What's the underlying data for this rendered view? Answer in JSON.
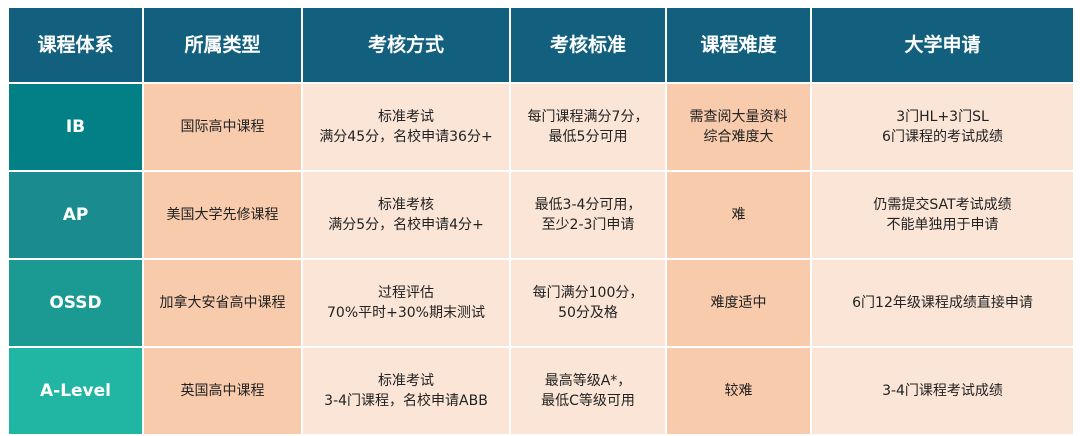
{
  "headers": [
    "课程体系",
    "所属类型",
    "考核方式",
    "考核标准",
    "课程难度",
    "大学申请"
  ],
  "colors": {
    "header": "#135f7e",
    "cell_light": "#fbe5d6",
    "cell_dark": "#f8cbad",
    "system_col": [
      "#028085",
      "#1a8b8e",
      "#1a9a93",
      "#21b5a3"
    ]
  },
  "rows": [
    [
      "IB",
      "国际高中课程",
      "标准考试\n满分45分，名校申请36分+",
      "每门课程满分7分，\n最低5分可用",
      "需查阅大量资料\n综合难度大",
      "3门HL+3门SL\n6门课程的考试成绩"
    ],
    [
      "AP",
      "美国大学先修课程",
      "标准考核\n满分5分，名校申请4分+",
      "最低3-4分可用，\n至少2-3门申请",
      "难",
      "仍需提交SAT考试成绩\n不能单独用于申请"
    ],
    [
      "OSSD",
      "加拿大安省高中课程",
      "过程评估\n70%平时+30%期末测试",
      "每门满分100分，\n50分及格",
      "难度适中",
      "6门12年级课程成绩直接申请"
    ],
    [
      "A-Level",
      "英国高中课程",
      "标准考试\n3-4门课程，名校申请ABB",
      "最高等级A*，\n最低C等级可用",
      "较难",
      "3-4门课程考试成绩"
    ]
  ]
}
